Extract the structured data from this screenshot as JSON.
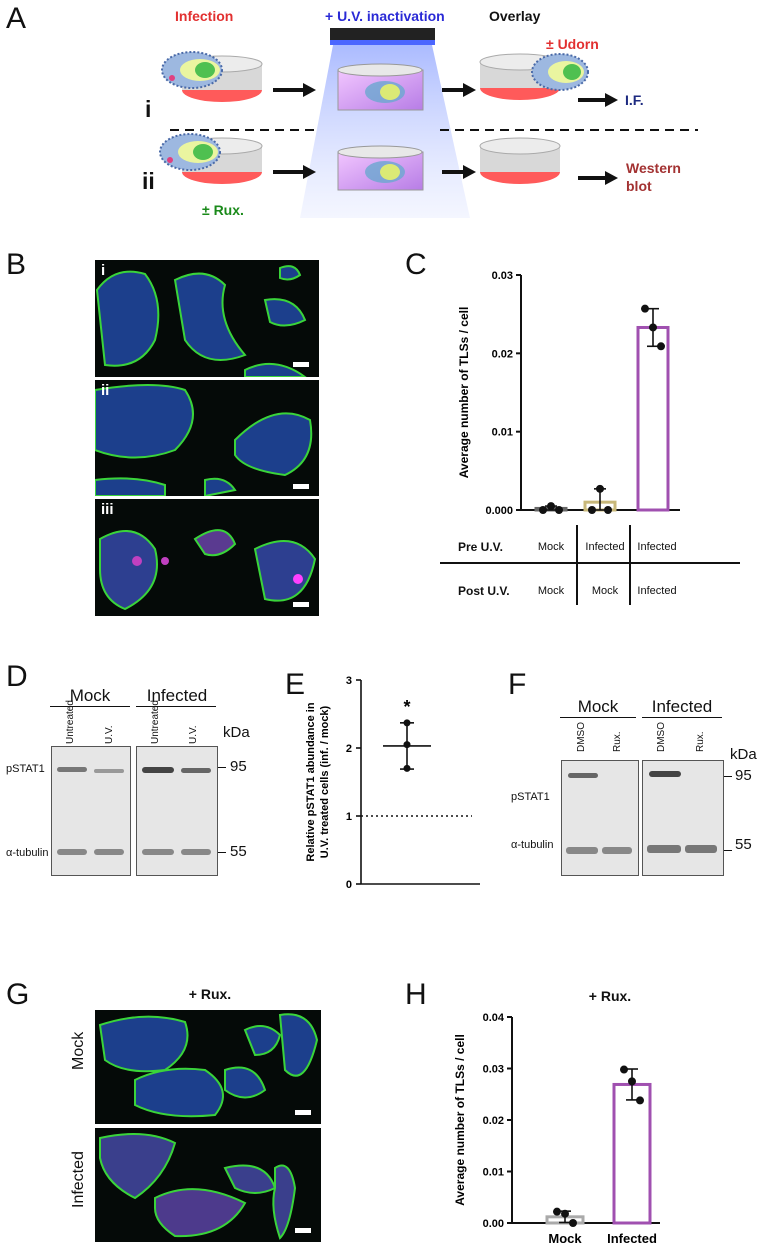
{
  "panels": {
    "A": {
      "label": "A",
      "infection": "Infection",
      "uv": "+ U.V. inactivation",
      "overlay": "Overlay",
      "udorn": "± Udorn",
      "row_i": "i",
      "row_ii": "ii",
      "rux": "± Rux.",
      "if": "I.F.",
      "western1": "Western",
      "western2": "blot",
      "colors": {
        "red": "#e23030",
        "blue": "#2a2ad6",
        "green": "#1a8a1a",
        "navy": "#1d2a80",
        "brown": "#a33232"
      }
    },
    "B": {
      "label": "B",
      "sub": [
        "i",
        "ii",
        "iii"
      ]
    },
    "C": {
      "label": "C",
      "table": {
        "pre": "Pre U.V.",
        "post": "Post U.V.",
        "pre_values": [
          "Mock",
          "Infected",
          "Infected"
        ],
        "post_values": [
          "Mock",
          "Mock",
          "Infected"
        ]
      }
    },
    "D": {
      "label": "D",
      "mock": "Mock",
      "infected": "Infected",
      "lanes": [
        "Untreated",
        "U.V.",
        "Untreated",
        "U.V."
      ],
      "kda": "kDa",
      "kda_95": "95",
      "kda_55": "55",
      "pstat": "pSTAT1",
      "tubulin": "α-tubulin"
    },
    "E": {
      "label": "E",
      "sig": "*"
    },
    "F": {
      "label": "F",
      "mock": "Mock",
      "infected": "Infected",
      "lanes": [
        "DMSO",
        "Rux.",
        "DMSO",
        "Rux."
      ],
      "kda": "kDa",
      "kda_95": "95",
      "kda_55": "55",
      "pstat": "pSTAT1",
      "tubulin": "α-tubulin"
    },
    "G": {
      "label": "G",
      "title": "+ Rux.",
      "mock": "Mock",
      "infected": "Infected"
    },
    "H": {
      "label": "H",
      "title": "+ Rux."
    }
  },
  "chart_data": [
    {
      "id": "C",
      "type": "bar",
      "categories": [
        "Mock / Mock",
        "Infected / Mock",
        "Infected / Infected"
      ],
      "values": [
        0.0002,
        0.001,
        0.0233
      ],
      "errors": [
        0.0003,
        0.0017,
        0.0024
      ],
      "points": [
        [
          0.0,
          0.0005,
          0.0
        ],
        [
          0.0,
          0.0027,
          0.0
        ],
        [
          0.0257,
          0.0233,
          0.0209
        ]
      ],
      "bar_colors": [
        "#666666",
        "#c8b87a",
        "#a050b0"
      ],
      "ylabel": "Average number of TLSs / cell",
      "ylim": [
        0,
        0.03
      ],
      "yticks": [
        "0.000",
        "0.01",
        "0.02",
        "0.03"
      ],
      "ytick_values": [
        0,
        0.01,
        0.02,
        0.03
      ]
    },
    {
      "id": "E",
      "type": "scatter",
      "values": [
        2.37,
        2.05,
        1.7
      ],
      "mean": 2.03,
      "sd": 0.34,
      "reference_line": 1,
      "ylabel": "Relative pSTAT1 abundance in U.V. treated cells (inf. / mock)",
      "ylim": [
        0,
        3
      ],
      "yticks": [
        "0",
        "1",
        "2",
        "3"
      ],
      "ytick_values": [
        0,
        1,
        2,
        3
      ]
    },
    {
      "id": "H",
      "type": "bar",
      "categories": [
        "Mock",
        "Infected"
      ],
      "values": [
        0.0012,
        0.0269
      ],
      "errors": [
        0.0011,
        0.003
      ],
      "points": [
        [
          0.0022,
          0.0018,
          0.0
        ],
        [
          0.0298,
          0.0275,
          0.0238
        ]
      ],
      "bar_colors": [
        "#aaaaaa",
        "#a050b0"
      ],
      "ylabel": "Average number of TLSs / cell",
      "ylim": [
        0,
        0.04
      ],
      "yticks": [
        "0.00",
        "0.01",
        "0.02",
        "0.03",
        "0.04"
      ],
      "ytick_values": [
        0,
        0.01,
        0.02,
        0.03,
        0.04
      ]
    }
  ]
}
